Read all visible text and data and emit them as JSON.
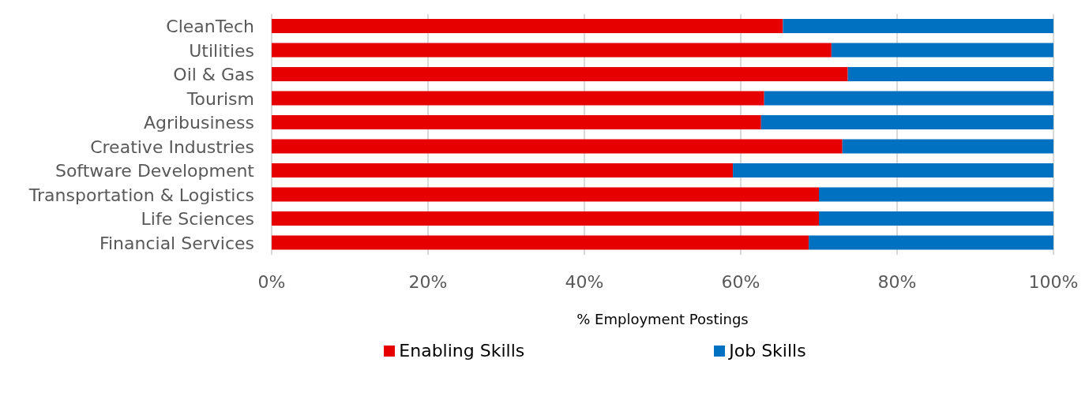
{
  "chart_data": {
    "type": "bar",
    "orientation": "horizontal",
    "stacked": true,
    "xlabel": "% Employment Postings",
    "categories": [
      "CleanTech",
      "Utilities",
      "Oil & Gas",
      "Tourism",
      "Agribusiness",
      "Creative Industries",
      "Software Development",
      "Transportation & Logistics",
      "Life Sciences",
      "Financial Services"
    ],
    "series": [
      {
        "name": "Enabling Skills",
        "color": "#e60000",
        "values": [
          65.4,
          71.6,
          73.7,
          63.0,
          62.6,
          73.0,
          59.0,
          70.0,
          70.0,
          68.7
        ]
      },
      {
        "name": "Job Skills",
        "color": "#0070c0",
        "values": [
          34.6,
          28.4,
          26.3,
          37.0,
          37.4,
          27.0,
          41.0,
          30.0,
          30.0,
          31.3
        ]
      }
    ],
    "xlim": [
      0,
      100
    ],
    "xticks": [
      {
        "value": 0,
        "label": "0%"
      },
      {
        "value": 20,
        "label": "20%"
      },
      {
        "value": 40,
        "label": "40%"
      },
      {
        "value": 60,
        "label": "60%"
      },
      {
        "value": 80,
        "label": "80%"
      },
      {
        "value": 100,
        "label": "100%"
      }
    ],
    "grid": "x",
    "legend": "bottom"
  }
}
